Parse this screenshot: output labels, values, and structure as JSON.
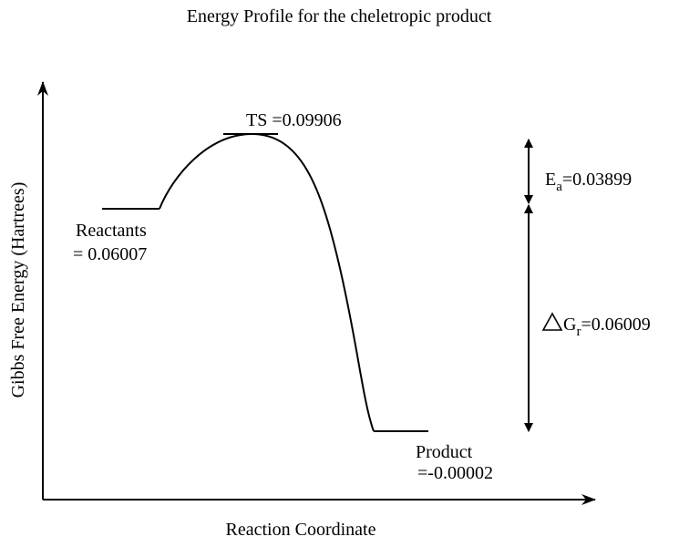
{
  "title": "Energy Profile for the cheletropic product",
  "axes": {
    "y_label": "Gibbs Free Energy (Hartrees)",
    "x_label": "Reaction Coordinate"
  },
  "labels": {
    "ts": "TS =0.09906",
    "reactants": "Reactants",
    "reactants_energy": "= 0.06007",
    "product": "Product",
    "product_energy": "=-0.00002",
    "ea_symbol": "E",
    "ea_subscript": "a",
    "ea_value": "=0.03899",
    "dg_symbol": "G",
    "dg_subscript": "r",
    "dg_value": "=0.06009"
  }
}
